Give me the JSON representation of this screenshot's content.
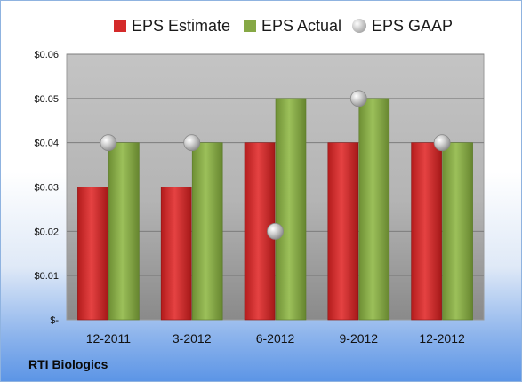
{
  "chart_data": {
    "type": "bar",
    "categories": [
      "12-2011",
      "3-2012",
      "6-2012",
      "9-2012",
      "12-2012"
    ],
    "series": [
      {
        "name": "EPS Estimate",
        "type": "bar",
        "color": "#d42a2a",
        "values": [
          0.03,
          0.03,
          0.04,
          0.04,
          0.04
        ]
      },
      {
        "name": "EPS Actual",
        "type": "bar",
        "color": "#86a845",
        "values": [
          0.04,
          0.04,
          0.05,
          0.05,
          0.04
        ]
      },
      {
        "name": "EPS GAAP",
        "type": "scatter",
        "color": "#b8b8b8",
        "values": [
          0.04,
          0.04,
          0.02,
          0.05,
          0.04
        ]
      }
    ],
    "yticks": [
      "$-",
      "$0.01",
      "$0.02",
      "$0.03",
      "$0.04",
      "$0.05",
      "$0.06"
    ],
    "ylim": [
      0,
      0.06
    ],
    "grid": true,
    "legend": "top"
  },
  "footer_label": "RTI Biologics"
}
